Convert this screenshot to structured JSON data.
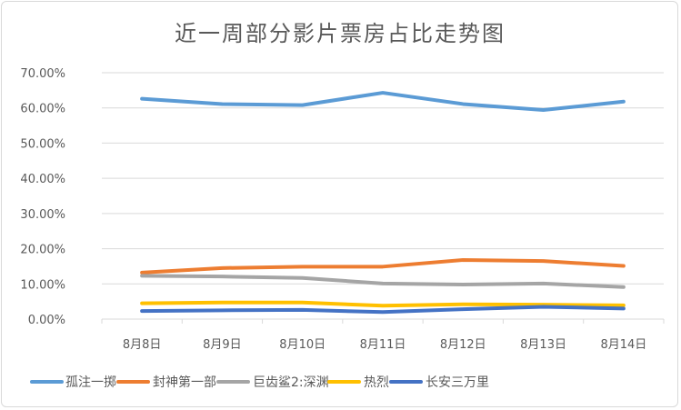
{
  "chart_data": {
    "type": "line",
    "title": "近一周部分影片票房占比走势图",
    "xlabel": "",
    "ylabel": "",
    "categories": [
      "8月8日",
      "8月9日",
      "8月10日",
      "8月11日",
      "8月12日",
      "8月13日",
      "8月14日"
    ],
    "ylim": [
      0,
      70
    ],
    "yticks": [
      "0.00%",
      "10.00%",
      "20.00%",
      "30.00%",
      "40.00%",
      "50.00%",
      "60.00%",
      "70.00%"
    ],
    "grid": true,
    "legend": "bottom",
    "series": [
      {
        "name": "孤注一掷",
        "color": "#5B9BD5",
        "values": [
          62.6,
          61.1,
          60.8,
          64.3,
          61.1,
          59.4,
          61.8
        ]
      },
      {
        "name": "封神第一部",
        "color": "#ED7D31",
        "values": [
          13.2,
          14.5,
          14.9,
          14.9,
          16.8,
          16.5,
          15.1
        ]
      },
      {
        "name": "巨齿鲨2:深渊",
        "color": "#A5A5A5",
        "values": [
          12.3,
          12.1,
          11.7,
          10.1,
          9.8,
          10.1,
          9.1
        ]
      },
      {
        "name": "热烈",
        "color": "#FFC000",
        "values": [
          4.5,
          4.7,
          4.7,
          3.8,
          4.2,
          4.1,
          3.9
        ]
      },
      {
        "name": "长安三万里",
        "color": "#4472C4",
        "values": [
          2.3,
          2.5,
          2.6,
          2.0,
          2.8,
          3.5,
          3.0
        ]
      }
    ]
  }
}
